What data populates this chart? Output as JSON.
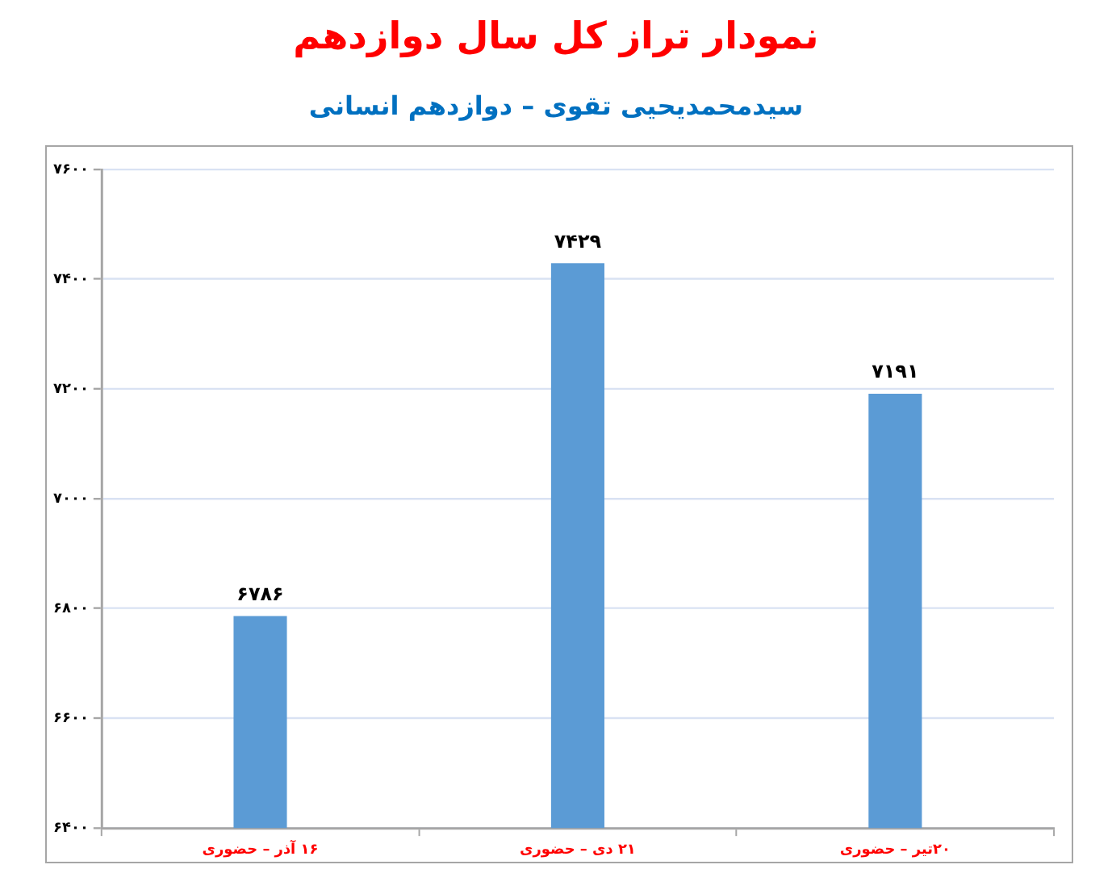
{
  "chart_data": {
    "type": "bar",
    "title": "نمودار تراز کل سال دوازدهم",
    "subtitle": "سیدمحمدیحیی تقوی – دوازدهم انسانی",
    "categories": [
      "۱۶ آذر – حضوری",
      "۲۱ دی – حضوری",
      "۲۰تیر – حضوری"
    ],
    "values": [
      6786,
      7429,
      7191
    ],
    "value_labels": [
      "۶۷۸۶",
      "۷۴۲۹",
      "۷۱۹۱"
    ],
    "color": "#5b9bd5",
    "ylim": [
      6400,
      7600
    ],
    "yticks": [
      {
        "value": 6400,
        "label": "۶۴۰۰"
      },
      {
        "value": 6600,
        "label": "۶۶۰۰"
      },
      {
        "value": 6800,
        "label": "۶۸۰۰"
      },
      {
        "value": 7000,
        "label": "۷۰۰۰"
      },
      {
        "value": 7200,
        "label": "۷۲۰۰"
      },
      {
        "value": 7400,
        "label": "۷۴۰۰"
      },
      {
        "value": 7600,
        "label": "۷۶۰۰"
      }
    ],
    "grid": "y"
  }
}
